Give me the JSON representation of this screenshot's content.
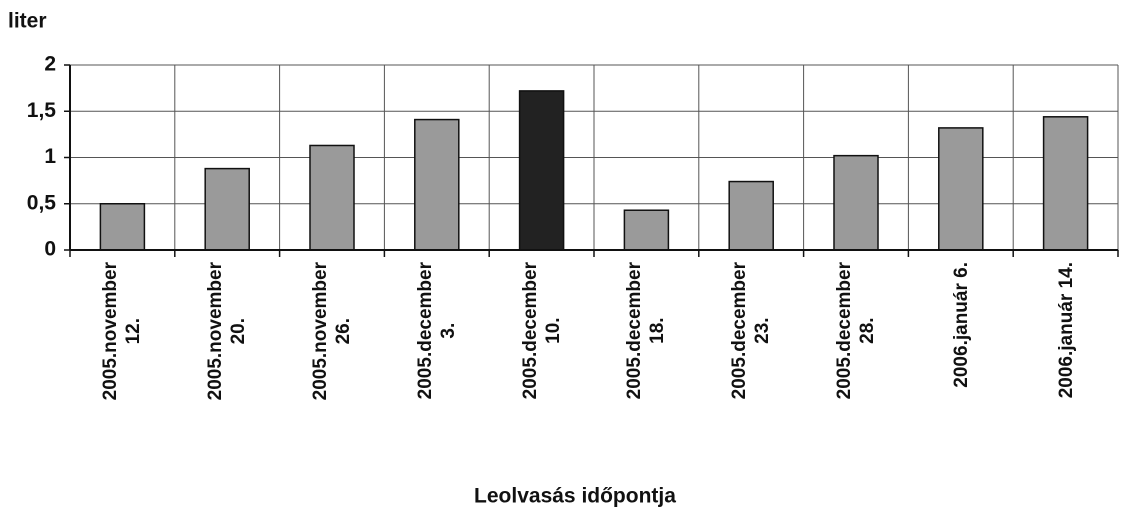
{
  "chart_data": {
    "type": "bar",
    "y_label": "liter",
    "x_label": "Leolvasás időpontja",
    "categories": [
      "2005.november\n12.",
      "2005.november\n20.",
      "2005.november\n26.",
      "2005.december\n3.",
      "2005.december\n10.",
      "2005.december\n18.",
      "2005.december\n23.",
      "2005.december\n28.",
      "2006.január 6.",
      "2006.január 14."
    ],
    "values": [
      0.5,
      0.88,
      1.13,
      1.41,
      1.72,
      0.43,
      0.74,
      1.02,
      1.32,
      1.44
    ],
    "colors": [
      "#9a9a9a",
      "#9a9a9a",
      "#9a9a9a",
      "#9a9a9a",
      "#222222",
      "#9a9a9a",
      "#9a9a9a",
      "#9a9a9a",
      "#9a9a9a",
      "#9a9a9a"
    ],
    "ylim": [
      0,
      2
    ],
    "yticks": [
      0,
      {
        "value": 0.5,
        "label": "0,5"
      },
      1,
      {
        "value": 1.5,
        "label": "1,5"
      },
      2
    ],
    "grid": true
  }
}
